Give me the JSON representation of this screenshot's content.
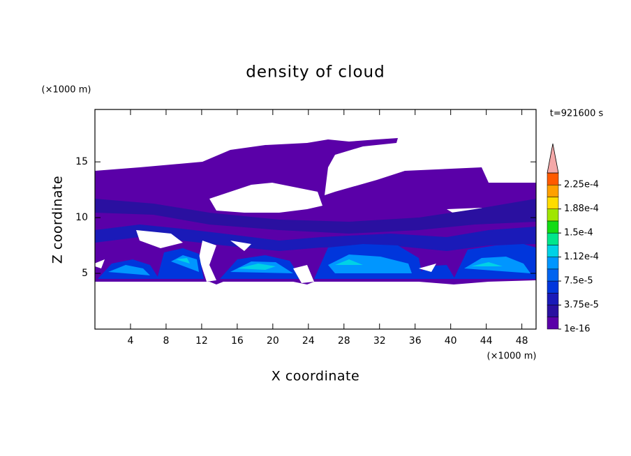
{
  "chart_data": {
    "type": "contour",
    "title": "density of cloud",
    "x_label": "X coordinate",
    "y_label": "Z coordinate",
    "x_unit": "(×1000 m)",
    "y_unit": "(×1000 m)",
    "time_label": "t=921600 s",
    "xlim": [
      0,
      49.6
    ],
    "xticks": [
      4,
      8,
      12,
      16,
      20,
      24,
      28,
      32,
      36,
      40,
      44,
      48
    ],
    "ylim": [
      0,
      19.7
    ],
    "yticks": [
      5,
      10,
      15
    ],
    "colorbar": {
      "lim": [
        1e-16,
        0.00024375
      ],
      "ticks": [
        {
          "value": 1e-16,
          "label": "1e-16"
        },
        {
          "value": 3.75e-05,
          "label": "3.75e-5"
        },
        {
          "value": 7.5e-05,
          "label": "7.5e-5"
        },
        {
          "value": 0.0001125,
          "label": "1.12e-4"
        },
        {
          "value": 0.00015,
          "label": "1.5e-4"
        },
        {
          "value": 0.0001875,
          "label": "1.88e-4"
        },
        {
          "value": 0.000225,
          "label": "2.25e-4"
        }
      ],
      "colors": [
        "#5a00a8",
        "#2a10a0",
        "#1a1ab8",
        "#0036dc",
        "#0064f0",
        "#0096ff",
        "#00d2e6",
        "#00e68c",
        "#14dc14",
        "#a0e600",
        "#ffdc00",
        "#ffa000",
        "#ff5a00"
      ],
      "extend_color": "#f4a8a8"
    }
  }
}
